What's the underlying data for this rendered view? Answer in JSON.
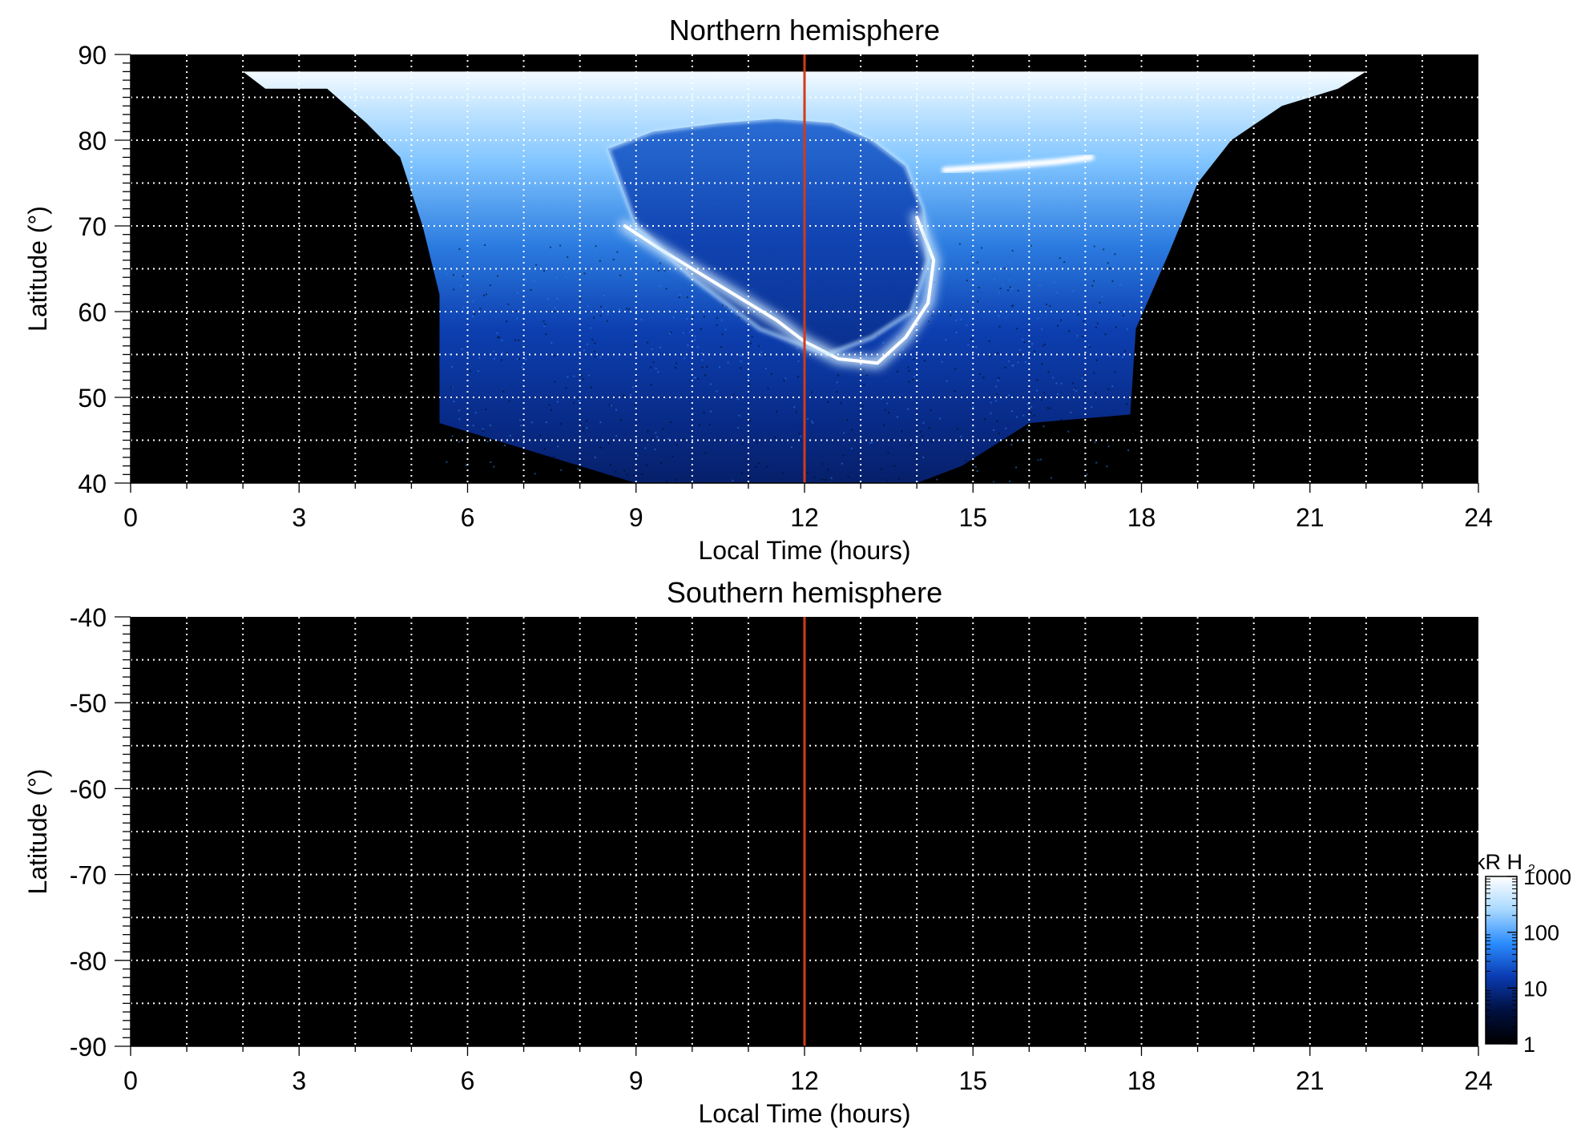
{
  "chart_data": [
    {
      "type": "heatmap",
      "title": "Northern hemisphere",
      "xlabel": "Local Time (hours)",
      "ylabel": "Latitude (°)",
      "xlim": [
        0,
        24
      ],
      "ylim": [
        40,
        90
      ],
      "x_ticks": [
        0,
        3,
        6,
        9,
        12,
        15,
        18,
        21,
        24
      ],
      "x_tick_labels": [
        "0",
        "3",
        "6",
        "9",
        "12",
        "15",
        "18",
        "21",
        "24"
      ],
      "y_ticks": [
        40,
        50,
        60,
        70,
        80,
        90
      ],
      "y_tick_labels": [
        "40",
        "50",
        "60",
        "70",
        "80",
        "90"
      ],
      "x_grid": [
        1,
        2,
        3,
        4,
        5,
        6,
        7,
        8,
        9,
        10,
        11,
        12,
        13,
        14,
        15,
        16,
        17,
        18,
        19,
        20,
        21,
        22,
        23
      ],
      "y_grid": [
        45,
        50,
        55,
        60,
        65,
        70,
        75,
        80,
        85
      ],
      "grid": true,
      "grid_color": "#ffffff",
      "background_color": "#000000",
      "reference_line": {
        "x": 12,
        "color": "#d23a1a"
      },
      "features": {
        "outer_edge": {
          "lt": [
            0,
            2,
            2.4,
            3.5,
            4.2,
            4.8,
            5.2,
            5.5,
            5.5,
            9,
            10,
            12,
            14,
            14.8,
            16,
            17.8,
            17.9,
            18.5,
            19,
            19.6,
            20.5,
            21.5,
            22,
            24
          ],
          "lat": [
            88,
            88,
            86,
            86,
            82,
            78,
            70,
            62,
            47,
            40,
            39.5,
            39.5,
            40,
            42,
            47,
            48,
            58,
            67,
            75,
            80,
            84,
            86,
            88,
            88
          ]
        },
        "polar_cap_boundary": {
          "lt": [
            8.5,
            9.3,
            10.5,
            11.5,
            12.5,
            13.2,
            13.8,
            14.1,
            14.2,
            13.9,
            13.2,
            12.4,
            11.2,
            10,
            9,
            8.5
          ],
          "lat": [
            79,
            81,
            82,
            82.5,
            82,
            80,
            77,
            72,
            66,
            60,
            57,
            55,
            58,
            64,
            70,
            79
          ]
        },
        "main_arc": {
          "lt": [
            8.8,
            9.5,
            10.5,
            11.5,
            12,
            12.6,
            13.3,
            13.8,
            14.2,
            14.3,
            14
          ],
          "lat": [
            70,
            67,
            63,
            59,
            56.5,
            54.5,
            54,
            57,
            61,
            66,
            71
          ]
        },
        "dusk_arc": {
          "lt": [
            14.5,
            15.6,
            16.5,
            17.1
          ],
          "lat": [
            76.5,
            77,
            77.5,
            78
          ]
        }
      }
    },
    {
      "type": "heatmap",
      "title": "Southern hemisphere",
      "xlabel": "Local Time (hours)",
      "ylabel": "Latitude (°)",
      "xlim": [
        0,
        24
      ],
      "ylim": [
        -90,
        -40
      ],
      "x_ticks": [
        0,
        3,
        6,
        9,
        12,
        15,
        18,
        21,
        24
      ],
      "x_tick_labels": [
        "0",
        "3",
        "6",
        "9",
        "12",
        "15",
        "18",
        "21",
        "24"
      ],
      "y_ticks": [
        -40,
        -50,
        -60,
        -70,
        -80,
        -90
      ],
      "y_tick_labels": [
        "-40",
        "-50",
        "-60",
        "-70",
        "-80",
        "-90"
      ],
      "x_grid": [
        1,
        2,
        3,
        4,
        5,
        6,
        7,
        8,
        9,
        10,
        11,
        12,
        13,
        14,
        15,
        16,
        17,
        18,
        19,
        20,
        21,
        22,
        23
      ],
      "y_grid": [
        -45,
        -50,
        -55,
        -60,
        -65,
        -70,
        -75,
        -80,
        -85
      ],
      "grid": true,
      "grid_color": "#ffffff",
      "background_color": "#000000",
      "reference_line": {
        "x": 12,
        "color": "#d23a1a"
      },
      "empty": true
    }
  ],
  "colorbar": {
    "label": "kR H",
    "label_subscript": "2",
    "scale": "log",
    "range": [
      1,
      1000
    ],
    "ticks": [
      1,
      10,
      100,
      1000
    ],
    "tick_labels": [
      "1",
      "10",
      "100",
      "1000"
    ],
    "colors": [
      "#000000",
      "#001040",
      "#0a3ab0",
      "#2a8cff",
      "#a8d8ff",
      "#ffffff"
    ]
  }
}
